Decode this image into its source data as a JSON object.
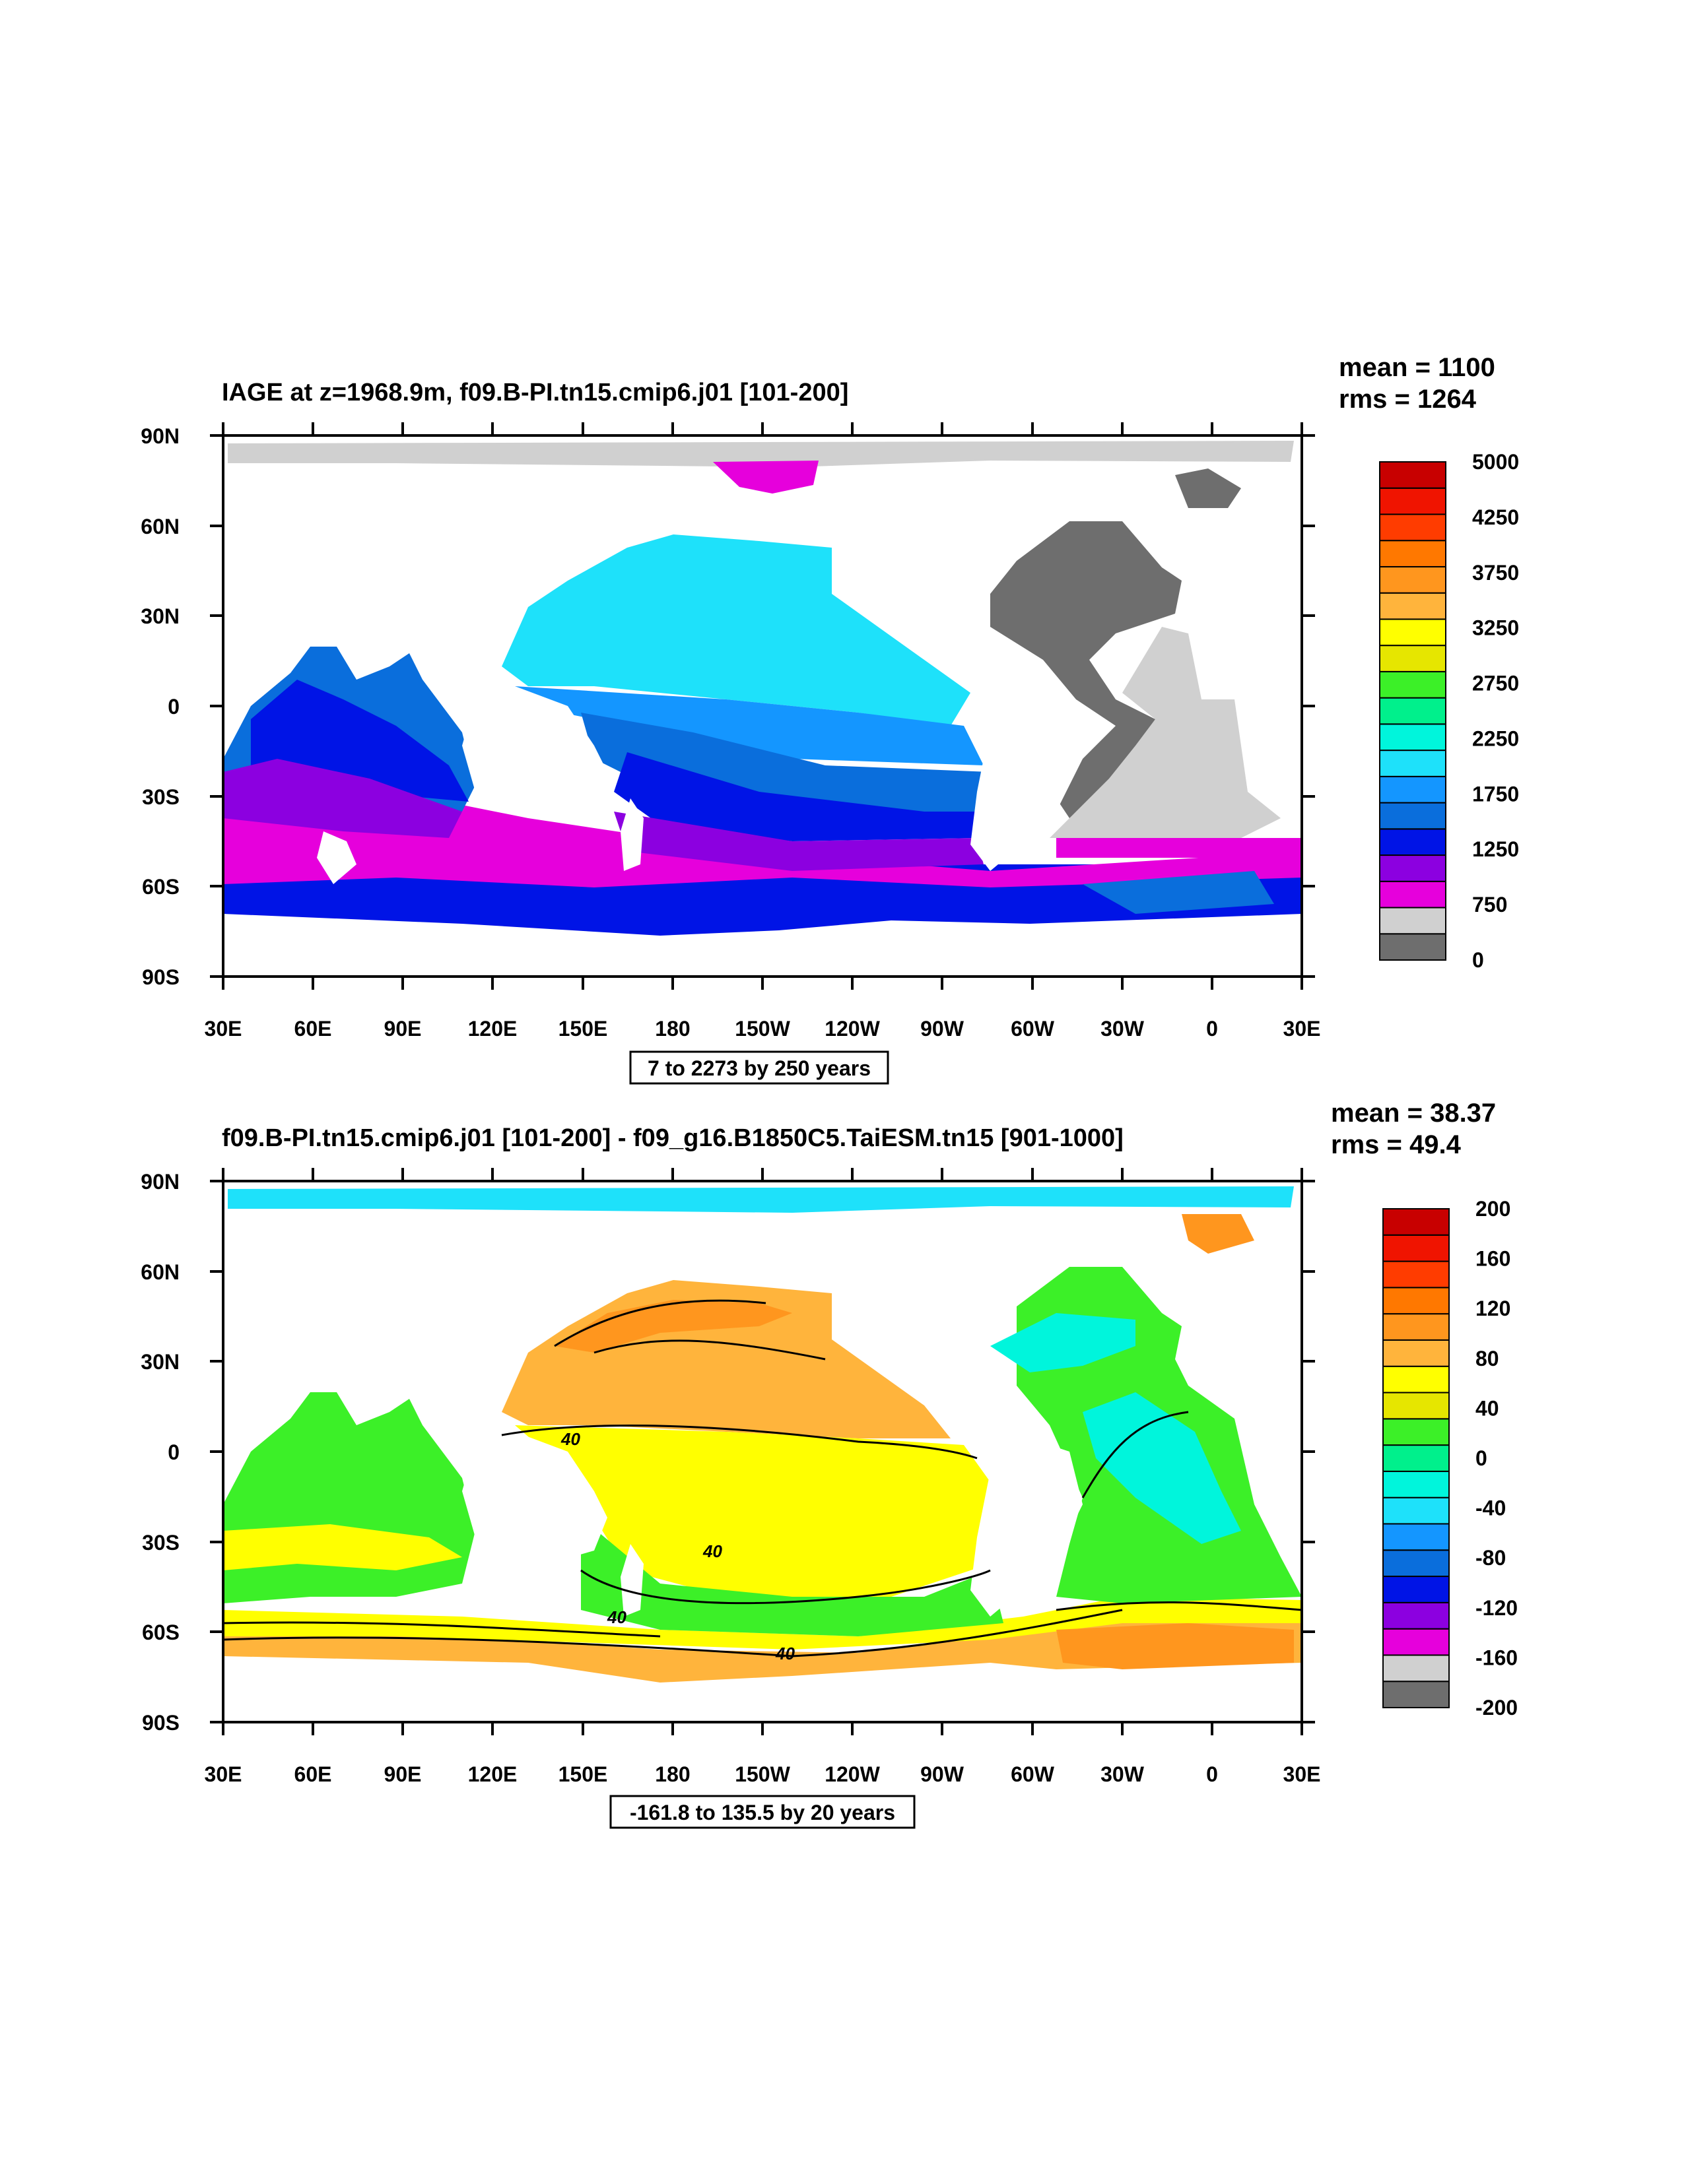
{
  "panels": [
    {
      "title": "IAGE at z=1968.9m, f09.B-PI.tn15.cmip6.j01 [101-200]",
      "stats": {
        "mean": "mean = 1100",
        "rms": "rms = 1264"
      },
      "contour_note": "7 to 2273 by 250 years",
      "colorbar": {
        "colors": [
          "#6e6e6e",
          "#d0d0d0",
          "#e600dc",
          "#8c00e0",
          "#0014e6",
          "#0a6edc",
          "#1496ff",
          "#1ee1fa",
          "#00f5dc",
          "#00f08c",
          "#3cf028",
          "#e6e600",
          "#ffff00",
          "#ffb43c",
          "#ff961e",
          "#ff7800",
          "#ff3c00",
          "#f01400",
          "#c80000"
        ],
        "labels": [
          "0",
          "750",
          "1250",
          "1750",
          "2250",
          "2750",
          "3250",
          "3750",
          "4250",
          "5000"
        ]
      }
    },
    {
      "title": "f09.B-PI.tn15.cmip6.j01 [101-200] - f09_g16.B1850C5.TaiESM.tn15 [901-1000]",
      "stats": {
        "mean": "mean = 38.37",
        "rms": "rms = 49.4"
      },
      "contour_note": "-161.8 to 135.5 by 20 years",
      "contour_labels": [
        "40",
        "40",
        "40",
        "40"
      ],
      "colorbar": {
        "colors": [
          "#6e6e6e",
          "#d0d0d0",
          "#e600dc",
          "#8c00e0",
          "#0014e6",
          "#0a6edc",
          "#1496ff",
          "#1ee1fa",
          "#00f5dc",
          "#00f08c",
          "#3cf028",
          "#e6e600",
          "#ffff00",
          "#ffb43c",
          "#ff961e",
          "#ff7800",
          "#ff3c00",
          "#f01400",
          "#c80000"
        ],
        "labels": [
          "-200",
          "-160",
          "-120",
          "-80",
          "-40",
          "0",
          "40",
          "80",
          "120",
          "160",
          "200"
        ]
      }
    }
  ],
  "axes": {
    "lat_labels": [
      "90N",
      "60N",
      "30N",
      "0",
      "30S",
      "60S",
      "90S"
    ],
    "lon_labels": [
      "30E",
      "60E",
      "90E",
      "120E",
      "150E",
      "180",
      "150W",
      "120W",
      "90W",
      "60W",
      "30W",
      "0",
      "30E"
    ]
  }
}
